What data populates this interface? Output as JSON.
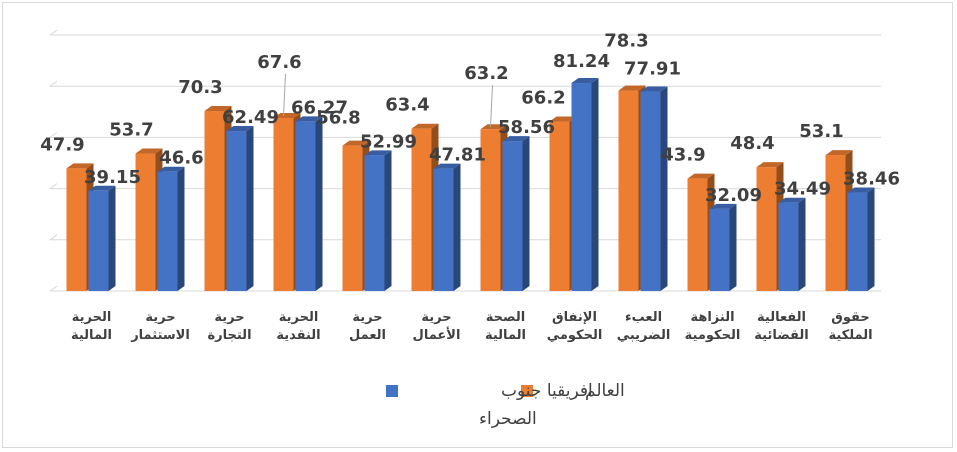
{
  "chart_data": {
    "type": "bar",
    "categories": [
      "حقوق الملكية",
      "الفعالية القضائية",
      "النزاهة الحكومية",
      "العبء الضريبي",
      "الإنفاق الحكومي",
      "الصحة المالية",
      "حرية الأعمال",
      "حرية العمل",
      "الحرية النقدية",
      "حرية التجارة",
      "حرية الاستثمار",
      "الحرية المالية"
    ],
    "category_lines": [
      [
        "حقوق",
        "الملكية"
      ],
      [
        "الفعالية",
        "القضائية"
      ],
      [
        "النزاهة",
        "الحكومية"
      ],
      [
        "العبء",
        "الضريبي"
      ],
      [
        "الإنفاق",
        "الحكومي"
      ],
      [
        "الصحة",
        "المالية"
      ],
      [
        "حرية",
        "الأعمال"
      ],
      [
        "حرية",
        "العمل"
      ],
      [
        "الحرية",
        "النقدية"
      ],
      [
        "حرية",
        "التجارة"
      ],
      [
        "حرية",
        "الاستثمار"
      ],
      [
        "الحرية",
        "المالية"
      ]
    ],
    "series": [
      {
        "name": "العالم",
        "color": "#ED7D31",
        "values": [
          53.1,
          48.4,
          43.9,
          78.3,
          66.2,
          63.2,
          63.4,
          56.8,
          67.6,
          70.3,
          53.7,
          47.9
        ],
        "labels": [
          "53.1",
          "48.4",
          "43.9",
          "78.3",
          "66.2",
          "63.2",
          "63.4",
          "56.8",
          "67.6",
          "70.3",
          "53.7",
          "47.9"
        ]
      },
      {
        "name": "افريقيا جنوب الصحراء",
        "color": "#4472C4",
        "values": [
          38.46,
          34.49,
          32.09,
          77.91,
          81.24,
          58.56,
          47.81,
          52.99,
          66.27,
          62.49,
          46.6,
          39.15
        ],
        "labels": [
          "38.46",
          "34.49",
          "32.09",
          "77.91",
          "81.24",
          "58.56",
          "47.81",
          "52.99",
          "66.27",
          "62.49",
          "46.6",
          "39.15"
        ]
      }
    ],
    "category_order": "right-to-left",
    "ylim": [
      0,
      100
    ],
    "grid": true,
    "legend_position": "bottom",
    "legend": {
      "series_1_label": "العالم",
      "series_2_line1": "افريقيا جنوب",
      "series_2_line2": "الصحراء"
    }
  }
}
